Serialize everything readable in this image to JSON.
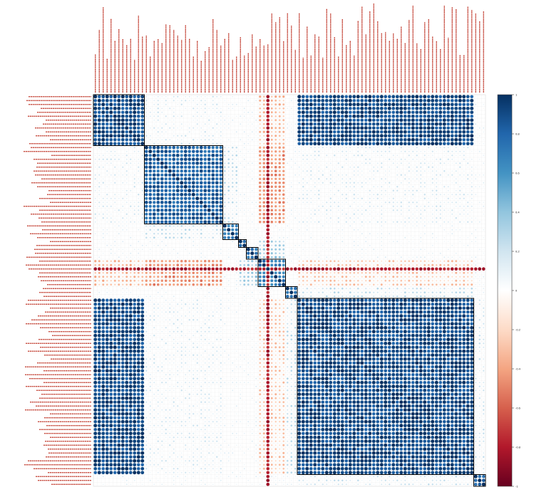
{
  "chart_data": {
    "type": "heatmap",
    "subtype": "correlation matrix (corrplot-style circles, hierarchical clusters outlined)",
    "title": "",
    "xlabel": "",
    "ylabel": "",
    "n_variables": 100,
    "value_range": [
      -1,
      1
    ],
    "colorbar": {
      "position": "right",
      "colors": [
        "#67001f",
        "#b2182b",
        "#d6604d",
        "#f4a582",
        "#fddbc7",
        "#ffffff",
        "#d1e5f0",
        "#92c5de",
        "#4393c3",
        "#2166ac",
        "#053061"
      ],
      "tick_values": [
        1,
        0.8,
        0.6,
        0.4,
        0.2,
        0,
        -0.2,
        -0.4,
        -0.6,
        -0.8,
        -1
      ],
      "tick_labels": [
        "1",
        "0.8",
        "0.6",
        "0.4",
        "0.2",
        "0",
        "-0.2",
        "-0.4",
        "-0.6",
        "-0.8",
        "-1"
      ]
    },
    "clusters": [
      {
        "start": 1,
        "end": 13,
        "within": 0.9
      },
      {
        "start": 14,
        "end": 33,
        "within": 0.8
      },
      {
        "start": 34,
        "end": 37,
        "within": 0.7
      },
      {
        "start": 38,
        "end": 39,
        "within": 0.75
      },
      {
        "start": 40,
        "end": 42,
        "within": 0.7
      },
      {
        "start": 43,
        "end": 49,
        "within": 0.7
      },
      {
        "start": 50,
        "end": 52,
        "within": 0.7
      },
      {
        "start": 53,
        "end": 97,
        "within": 0.9
      },
      {
        "start": 98,
        "end": 100,
        "within": 0.8
      }
    ],
    "cluster_pair_correlations": [
      {
        "a": 1,
        "b": 8,
        "value": 0.9
      },
      {
        "a": 1,
        "b": 2,
        "value": 0.12
      },
      {
        "a": 2,
        "b": 8,
        "value": 0.12
      },
      {
        "a": 1,
        "b": 6,
        "value": -0.3
      },
      {
        "a": 2,
        "b": 6,
        "value": -0.45
      },
      {
        "a": 6,
        "b": 8,
        "value": -0.25
      },
      {
        "a": 3,
        "b": 2,
        "value": 0.2
      },
      {
        "a": 4,
        "b": 6,
        "value": 0.3
      },
      {
        "a": 5,
        "b": 6,
        "value": 0.35
      },
      {
        "a": 7,
        "b": 8,
        "value": 0.2
      },
      {
        "a": 9,
        "b": 8,
        "value": 0.15
      }
    ],
    "default_between_cluster": 0.05,
    "dark_red_column": {
      "variable": 45,
      "value": -0.8
    }
  }
}
